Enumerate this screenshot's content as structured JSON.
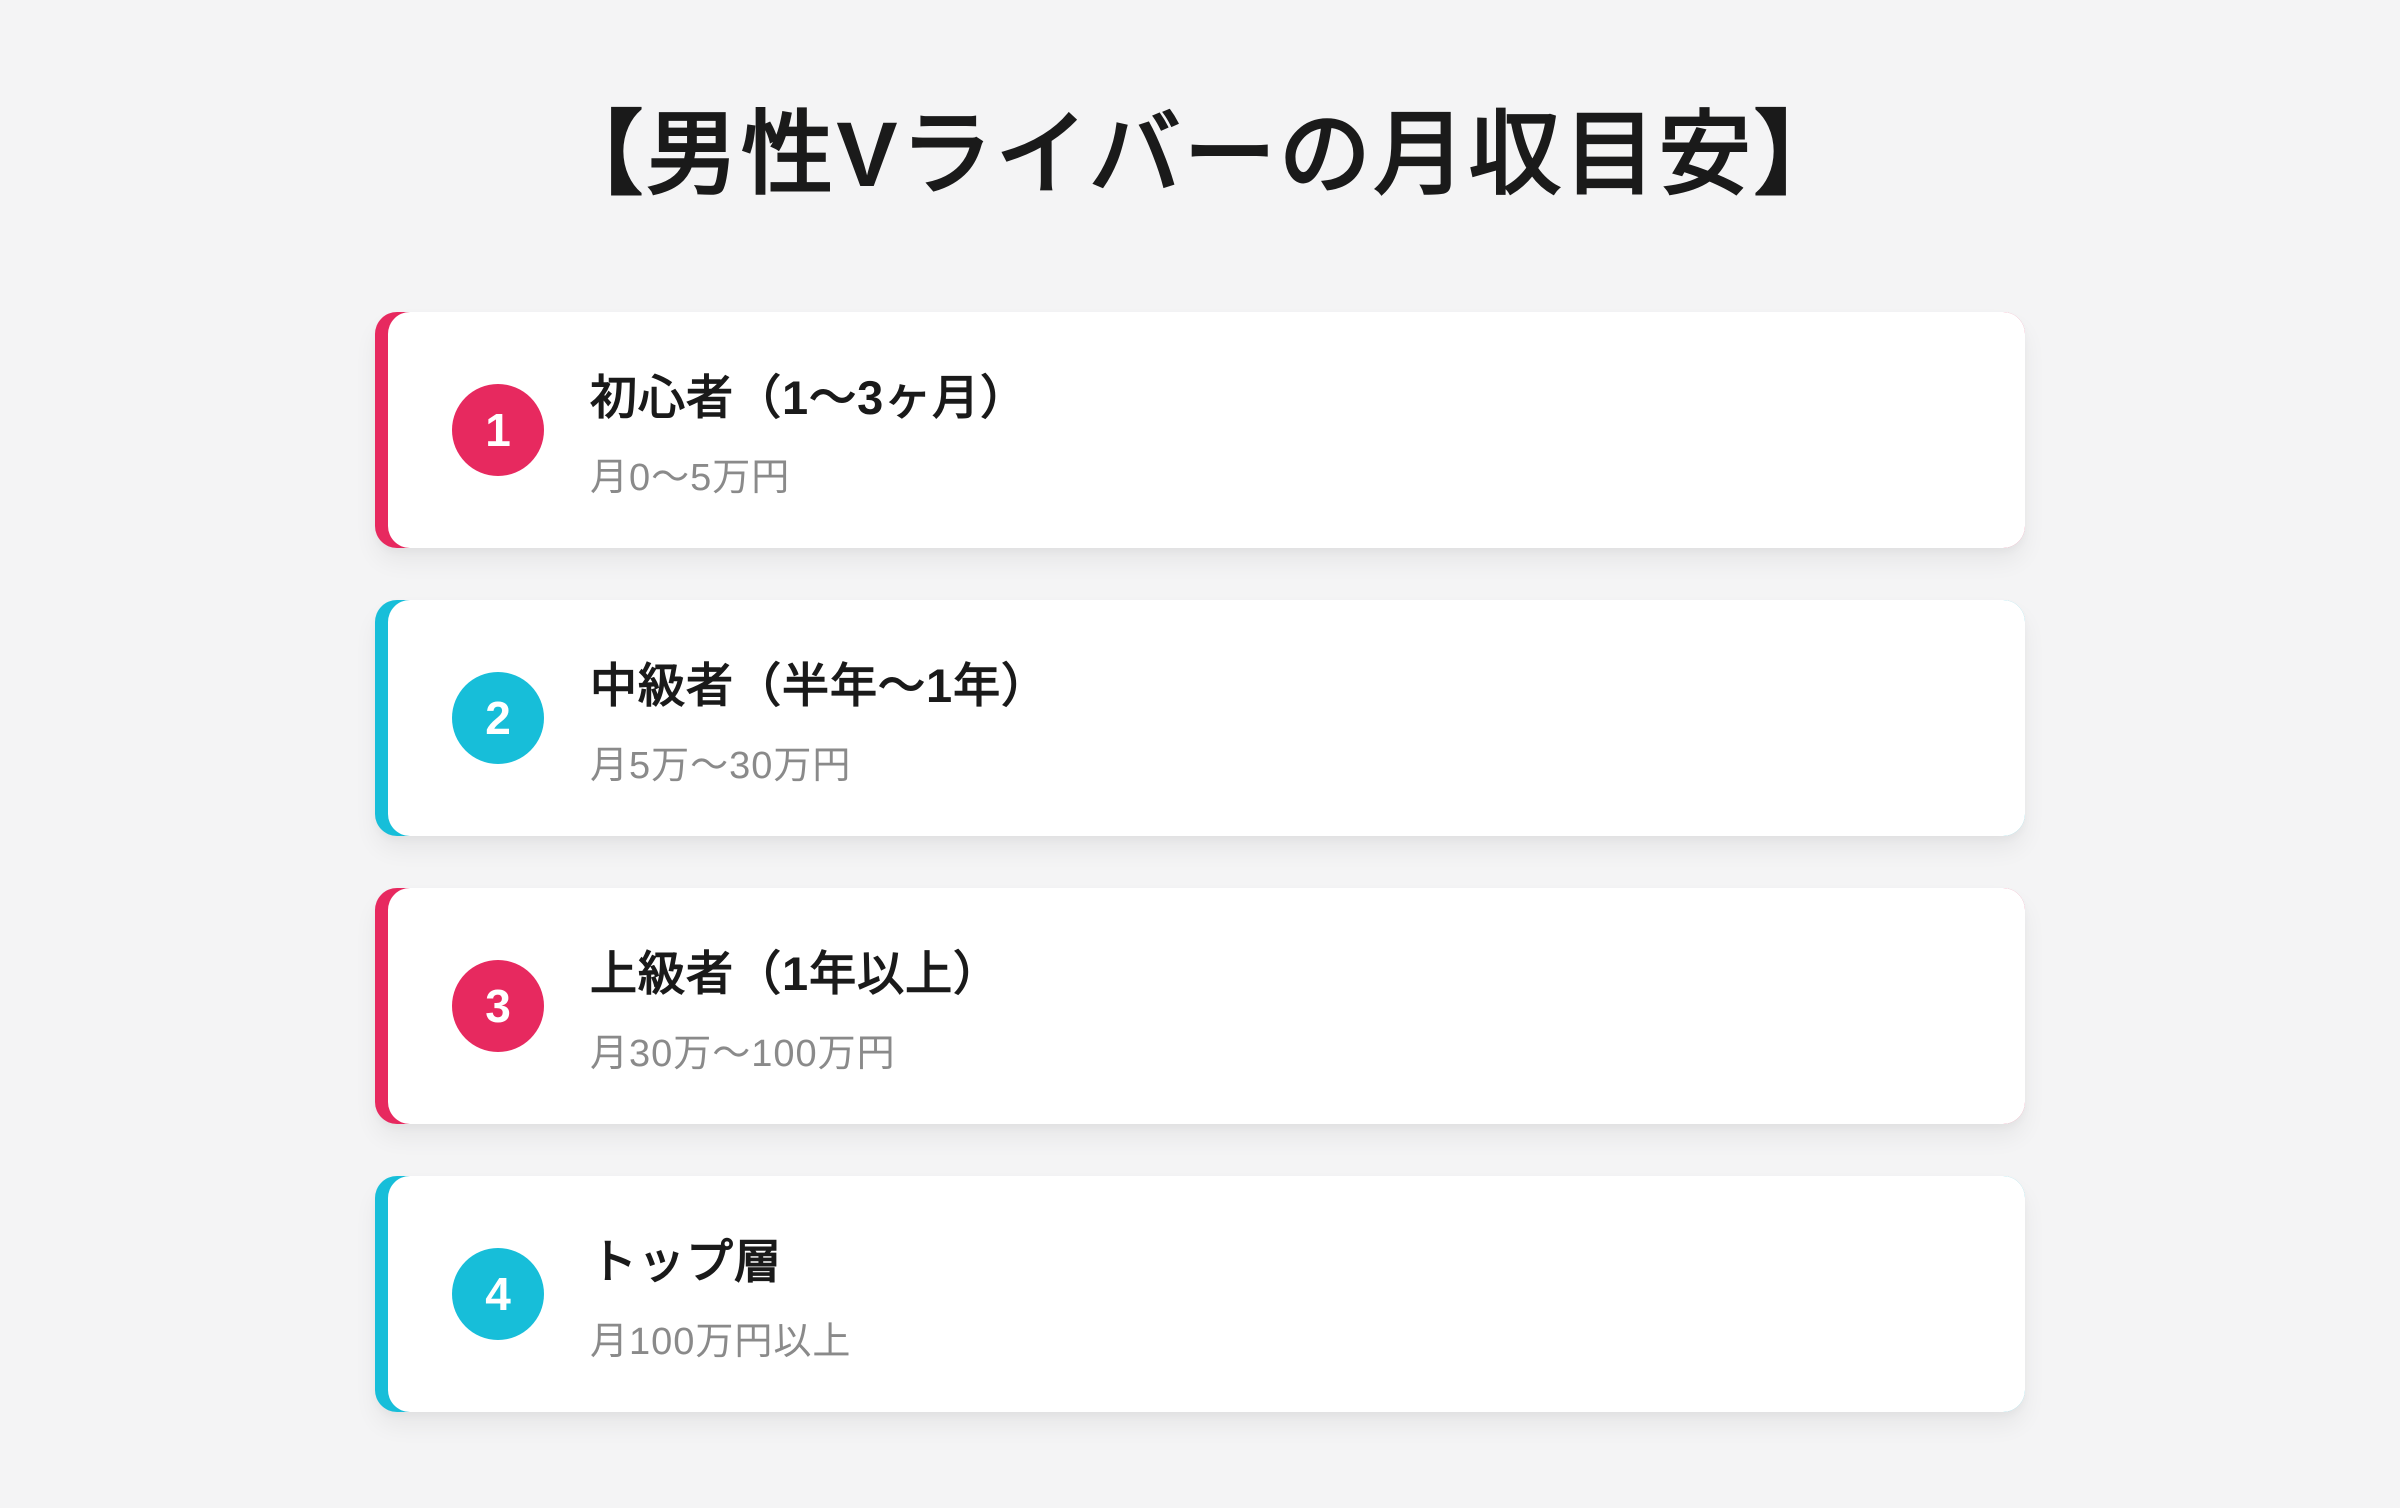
{
  "title": "【男性Vライバーの月収目安】",
  "colors": {
    "background": "#f4f4f5",
    "pink_accent": "#e7295f",
    "cyan_accent": "#17bed9",
    "card_background": "#ffffff",
    "label_text": "#1a1a1a",
    "income_text": "#8a8a8a"
  },
  "cards": [
    {
      "number": "1",
      "accent": "pink",
      "label": "初心者（1〜3ヶ月）",
      "income": "月0〜5万円"
    },
    {
      "number": "2",
      "accent": "cyan",
      "label": "中級者（半年〜1年）",
      "income": "月5万〜30万円"
    },
    {
      "number": "3",
      "accent": "pink",
      "label": "上級者（1年以上）",
      "income": "月30万〜100万円"
    },
    {
      "number": "4",
      "accent": "cyan",
      "label": "トップ層",
      "income": "月100万円以上"
    }
  ]
}
